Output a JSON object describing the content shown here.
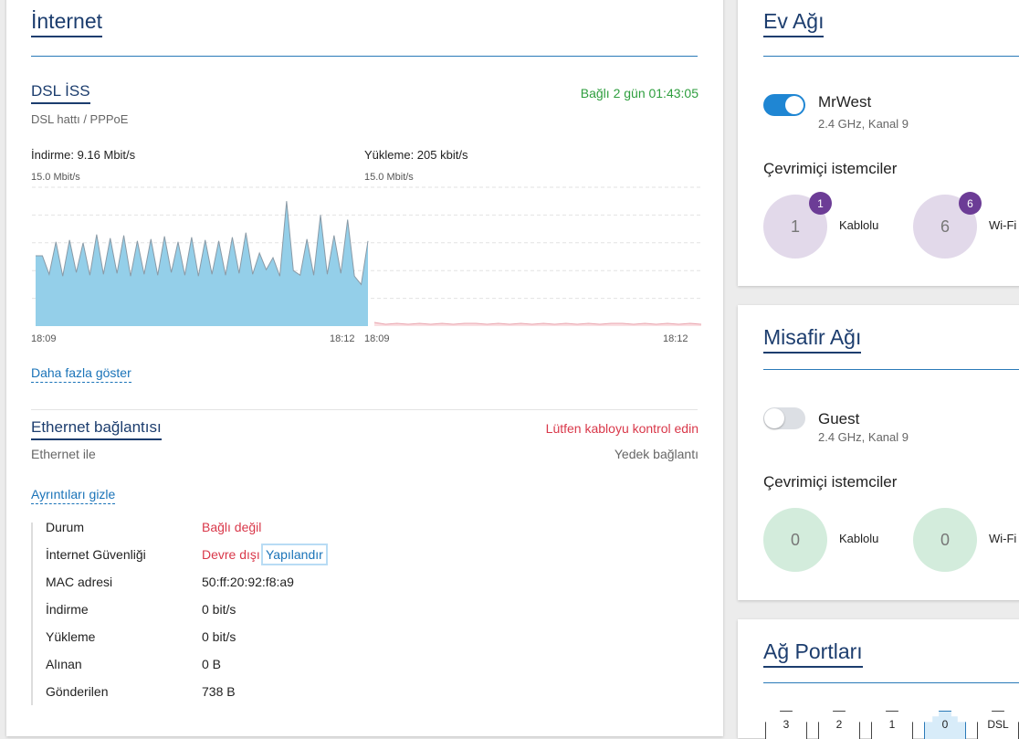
{
  "internet": {
    "title": "İnternet",
    "dsl": {
      "title": "DSL İSS",
      "status": "Bağlı 2 gün 01:43:05",
      "subtitle": "DSL hattı / PPPoE",
      "download": {
        "label": "İndirme: 9.16 Mbit/s",
        "max_label": "15.0 Mbit/s",
        "ylim": [
          0,
          15
        ],
        "start": "18:09",
        "end": "18:12",
        "values": [
          7.6,
          7.6,
          5.6,
          9.1,
          5.4,
          9.3,
          5.8,
          9.0,
          5.5,
          9.9,
          5.6,
          9.5,
          5.7,
          9.8,
          5.4,
          9.2,
          5.6,
          9.4,
          5.5,
          9.7,
          5.8,
          9.1,
          5.5,
          9.6,
          5.4,
          9.3,
          5.6,
          9.2,
          5.5,
          9.6,
          5.7,
          10.1,
          5.6,
          7.9,
          6.1,
          7.4,
          5.4,
          13.5,
          6.0,
          5.5,
          9.4,
          5.5,
          12.0,
          5.6,
          9.8,
          5.7,
          11.5,
          5.4,
          4.5,
          9.2
        ]
      },
      "upload": {
        "label": "Yükleme: 205 kbit/s",
        "max_label": "15.0 Mbit/s",
        "ylim": [
          0,
          15
        ],
        "start": "18:09",
        "end": "18:12",
        "values": [
          0.4,
          0.2,
          0.3,
          0.2,
          0.3,
          0.2,
          0.3,
          0.2,
          0.3,
          0.3,
          0.2,
          0.3,
          0.2,
          0.3,
          0.2,
          0.3,
          0.2,
          0.3,
          0.2,
          0.3,
          0.2,
          0.3,
          0.3,
          0.2,
          0.3,
          0.2,
          0.3,
          0.2,
          0.3,
          0.2
        ]
      },
      "more": "Daha fazla göster"
    },
    "ethernet": {
      "title": "Ethernet bağlantısı",
      "status": "Lütfen kabloyu kontrol edin",
      "subtitle": "Ethernet ile",
      "mode": "Yedek bağlantı",
      "toggle": "Ayrıntıları gizle",
      "configure": "Yapılandır",
      "rows": [
        [
          "Durum",
          "Bağlı değil"
        ],
        [
          "İnternet Güvenliği",
          "Devre dışı"
        ],
        [
          "MAC adresi",
          "50:ff:20:92:f8:a9"
        ],
        [
          "İndirme",
          "0 bit/s"
        ],
        [
          "Yükleme",
          "0 bit/s"
        ],
        [
          "Alınan",
          "0 B"
        ],
        [
          "Gönderilen",
          "738 B"
        ]
      ]
    }
  },
  "home": {
    "title": "Ev Ağı",
    "ssid": "MrWest",
    "band": "2.4 GHz, Kanal 9",
    "clients_title": "Çevrimiçi istemciler",
    "wired": {
      "count": 1,
      "label": "Kablolu"
    },
    "wifi": {
      "count": 6,
      "label": "Wi-Fi"
    }
  },
  "guest": {
    "title": "Misafir Ağı",
    "ssid": "Guest",
    "band": "2.4 GHz, Kanal 9",
    "clients_title": "Çevrimiçi istemciler",
    "wired": {
      "count": 0,
      "label": "Kablolu"
    },
    "wifi": {
      "count": 0,
      "label": "Wi-Fi"
    }
  },
  "ports": {
    "title": "Ağ Portları",
    "labels": [
      "3",
      "2",
      "1",
      "0",
      "DSL"
    ]
  }
}
